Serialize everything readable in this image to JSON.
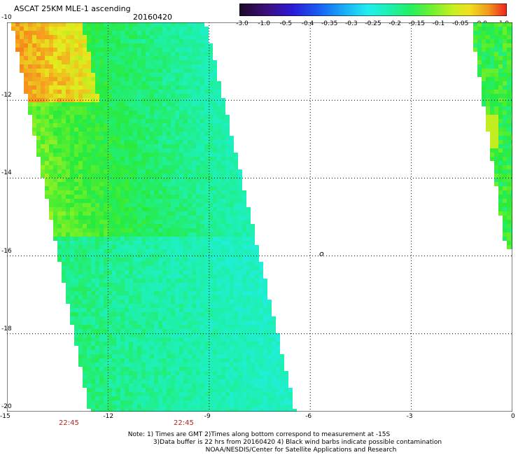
{
  "header": {
    "title": "ASCAT 25KM MLE-1 ascending",
    "date": "20160420"
  },
  "colorbar": {
    "labels": [
      "-3.0",
      "-1.0",
      "-0.5",
      "-0.4",
      "-0.35",
      "-0.3",
      "-0.25",
      "-0.2",
      "-0.15",
      "-0.1",
      "-0.05",
      "0.0",
      "1.0"
    ],
    "colors": [
      "#2b0a36",
      "#4b0f8f",
      "#3a1fd0",
      "#1a5cf0",
      "#1aa0f5",
      "#22e6f0",
      "#1ef0c8",
      "#28f08a",
      "#5cf03a",
      "#b4f01e",
      "#f0e61e",
      "#f08a1e",
      "#f02a1e"
    ]
  },
  "axes": {
    "x_ticks": [
      "-15",
      "-12",
      "-9",
      "-6",
      "-3",
      "0"
    ],
    "y_ticks": [
      "-10",
      "-12",
      "-14",
      "-16",
      "-18",
      "-20"
    ],
    "lon_range": [
      -15,
      0
    ],
    "lat_range": [
      -20,
      -10
    ]
  },
  "times": [
    "22:45",
    "22:45"
  ],
  "notes": {
    "line1": "Note: 1) Times are GMT 2)Times along bottom correspond to measurement at -15S",
    "line2": "3)Data buffer is 22 hrs from 20160420 4) Black wind barbs indicate possible contamination",
    "line3": "NOAA/NESDIS/Center for Satellite Applications and Research"
  },
  "marker": "o"
}
